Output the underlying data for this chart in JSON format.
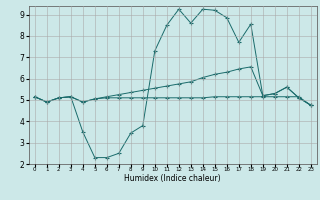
{
  "xlabel": "Humidex (Indice chaleur)",
  "background_color": "#cce8e8",
  "grid_color": "#aaaaaa",
  "line_color": "#1a6b6b",
  "xlim": [
    -0.5,
    23.5
  ],
  "ylim": [
    2,
    9.4
  ],
  "xticks": [
    0,
    1,
    2,
    3,
    4,
    5,
    6,
    7,
    8,
    9,
    10,
    11,
    12,
    13,
    14,
    15,
    16,
    17,
    18,
    19,
    20,
    21,
    22,
    23
  ],
  "yticks": [
    2,
    3,
    4,
    5,
    6,
    7,
    8,
    9
  ],
  "line1_x": [
    0,
    1,
    2,
    3,
    4,
    5,
    6,
    7,
    8,
    9,
    10,
    11,
    12,
    13,
    14,
    15,
    16,
    17,
    18,
    19,
    20,
    21,
    22,
    23
  ],
  "line1_y": [
    5.15,
    4.9,
    5.1,
    5.15,
    4.9,
    5.05,
    5.15,
    5.25,
    5.35,
    5.45,
    5.55,
    5.65,
    5.75,
    5.85,
    6.05,
    6.2,
    6.3,
    6.45,
    6.55,
    5.2,
    5.3,
    5.6,
    5.1,
    4.75
  ],
  "line2_x": [
    0,
    1,
    2,
    3,
    4,
    5,
    6,
    7,
    8,
    9,
    10,
    11,
    12,
    13,
    14,
    15,
    16,
    17,
    18,
    19,
    20,
    21,
    22,
    23
  ],
  "line2_y": [
    5.15,
    4.9,
    5.1,
    5.15,
    4.9,
    5.05,
    5.1,
    5.1,
    5.1,
    5.1,
    5.1,
    5.1,
    5.1,
    5.1,
    5.1,
    5.15,
    5.15,
    5.15,
    5.15,
    5.15,
    5.15,
    5.15,
    5.15,
    4.75
  ],
  "line3_x": [
    0,
    1,
    2,
    3,
    4,
    5,
    6,
    7,
    8,
    9,
    10,
    11,
    12,
    13,
    14,
    15,
    16,
    17,
    18,
    19,
    20,
    21,
    22,
    23
  ],
  "line3_y": [
    5.15,
    4.9,
    5.1,
    5.15,
    3.5,
    2.3,
    2.3,
    2.5,
    3.45,
    3.8,
    7.3,
    8.5,
    9.25,
    8.6,
    9.25,
    9.2,
    8.85,
    7.7,
    8.55,
    5.2,
    5.3,
    5.6,
    5.1,
    4.75
  ]
}
